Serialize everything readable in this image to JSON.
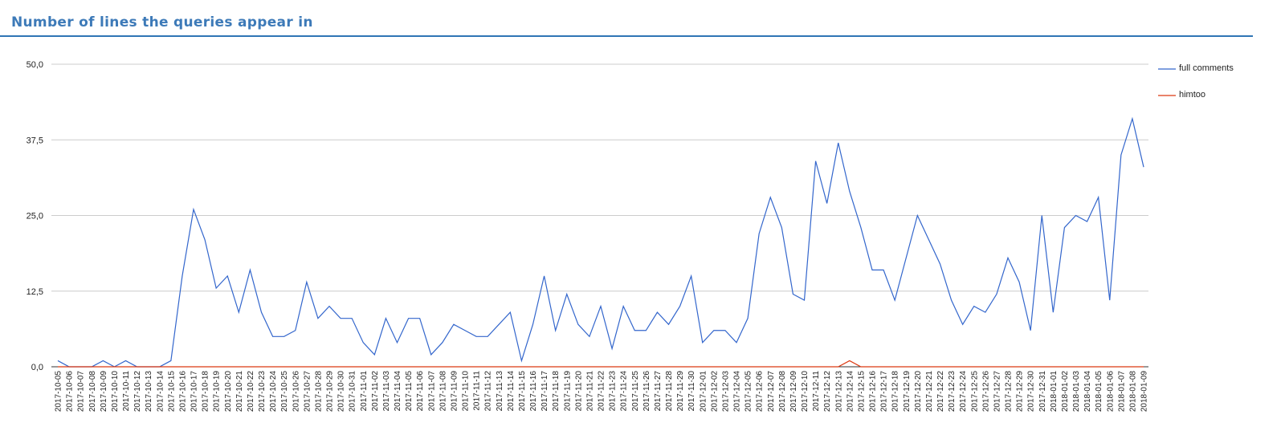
{
  "chart_data": {
    "type": "line",
    "title": "Number of lines the queries appear in",
    "categories": [
      "2017-10-05",
      "2017-10-06",
      "2017-10-07",
      "2017-10-08",
      "2017-10-09",
      "2017-10-10",
      "2017-10-11",
      "2017-10-12",
      "2017-10-13",
      "2017-10-14",
      "2017-10-15",
      "2017-10-16",
      "2017-10-17",
      "2017-10-18",
      "2017-10-19",
      "2017-10-20",
      "2017-10-21",
      "2017-10-22",
      "2017-10-23",
      "2017-10-24",
      "2017-10-25",
      "2017-10-26",
      "2017-10-27",
      "2017-10-28",
      "2017-10-29",
      "2017-10-30",
      "2017-10-31",
      "2017-11-01",
      "2017-11-02",
      "2017-11-03",
      "2017-11-04",
      "2017-11-05",
      "2017-11-06",
      "2017-11-07",
      "2017-11-08",
      "2017-11-09",
      "2017-11-10",
      "2017-11-11",
      "2017-11-12",
      "2017-11-13",
      "2017-11-14",
      "2017-11-15",
      "2017-11-16",
      "2017-11-17",
      "2017-11-18",
      "2017-11-19",
      "2017-11-20",
      "2017-11-21",
      "2017-11-22",
      "2017-11-23",
      "2017-11-24",
      "2017-11-25",
      "2017-11-26",
      "2017-11-27",
      "2017-11-28",
      "2017-11-29",
      "2017-11-30",
      "2017-12-01",
      "2017-12-02",
      "2017-12-03",
      "2017-12-04",
      "2017-12-05",
      "2017-12-06",
      "2017-12-07",
      "2017-12-08",
      "2017-12-09",
      "2017-12-10",
      "2017-12-11",
      "2017-12-12",
      "2017-12-13",
      "2017-12-14",
      "2017-12-15",
      "2017-12-16",
      "2017-12-17",
      "2017-12-18",
      "2017-12-19",
      "2017-12-20",
      "2017-12-21",
      "2017-12-22",
      "2017-12-23",
      "2017-12-24",
      "2017-12-25",
      "2017-12-26",
      "2017-12-27",
      "2017-12-28",
      "2017-12-29",
      "2017-12-30",
      "2017-12-31",
      "2018-01-01",
      "2018-01-02",
      "2018-01-03",
      "2018-01-04",
      "2018-01-05",
      "2018-01-06",
      "2018-01-07",
      "2018-01-08",
      "2018-01-09"
    ],
    "series": [
      {
        "name": "full comments",
        "color": "#3366cc",
        "values": [
          1,
          0,
          0,
          0,
          1,
          0,
          1,
          0,
          0,
          0,
          1,
          15,
          26,
          21,
          13,
          15,
          9,
          16,
          9,
          5,
          5,
          6,
          14,
          8,
          10,
          8,
          8,
          4,
          2,
          8,
          4,
          8,
          8,
          2,
          4,
          7,
          6,
          5,
          5,
          7,
          9,
          1,
          7,
          15,
          6,
          12,
          7,
          5,
          10,
          3,
          10,
          6,
          6,
          9,
          7,
          10,
          15,
          4,
          6,
          6,
          4,
          8,
          22,
          28,
          23,
          12,
          11,
          34,
          27,
          37,
          29,
          23,
          16,
          16,
          11,
          18,
          25,
          21,
          17,
          11,
          7,
          10,
          9,
          12,
          18,
          14,
          6,
          25,
          9,
          23,
          25,
          24,
          28,
          11,
          35,
          41,
          33
        ]
      },
      {
        "name": "himtoo",
        "color": "#dc3912",
        "values": [
          0,
          0,
          0,
          0,
          0,
          0,
          0,
          0,
          0,
          0,
          0,
          0,
          0,
          0,
          0,
          0,
          0,
          0,
          0,
          0,
          0,
          0,
          0,
          0,
          0,
          0,
          0,
          0,
          0,
          0,
          0,
          0,
          0,
          0,
          0,
          0,
          0,
          0,
          0,
          0,
          0,
          0,
          0,
          0,
          0,
          0,
          0,
          0,
          0,
          0,
          0,
          0,
          0,
          0,
          0,
          0,
          0,
          0,
          0,
          0,
          0,
          0,
          0,
          0,
          0,
          0,
          0,
          0,
          0,
          0,
          1,
          0,
          0,
          0,
          0,
          0,
          0,
          0,
          0,
          0,
          0,
          0,
          0,
          0,
          0,
          0,
          0,
          0,
          0,
          0,
          0,
          0,
          0,
          0,
          0,
          0,
          0
        ]
      }
    ],
    "ylim": [
      0,
      50
    ],
    "yticks": [
      {
        "value": 0,
        "label": "0,0"
      },
      {
        "value": 12.5,
        "label": "12,5"
      },
      {
        "value": 25,
        "label": "25,0"
      },
      {
        "value": 37.5,
        "label": "37,5"
      },
      {
        "value": 50,
        "label": "50,0"
      }
    ],
    "grid": true
  }
}
